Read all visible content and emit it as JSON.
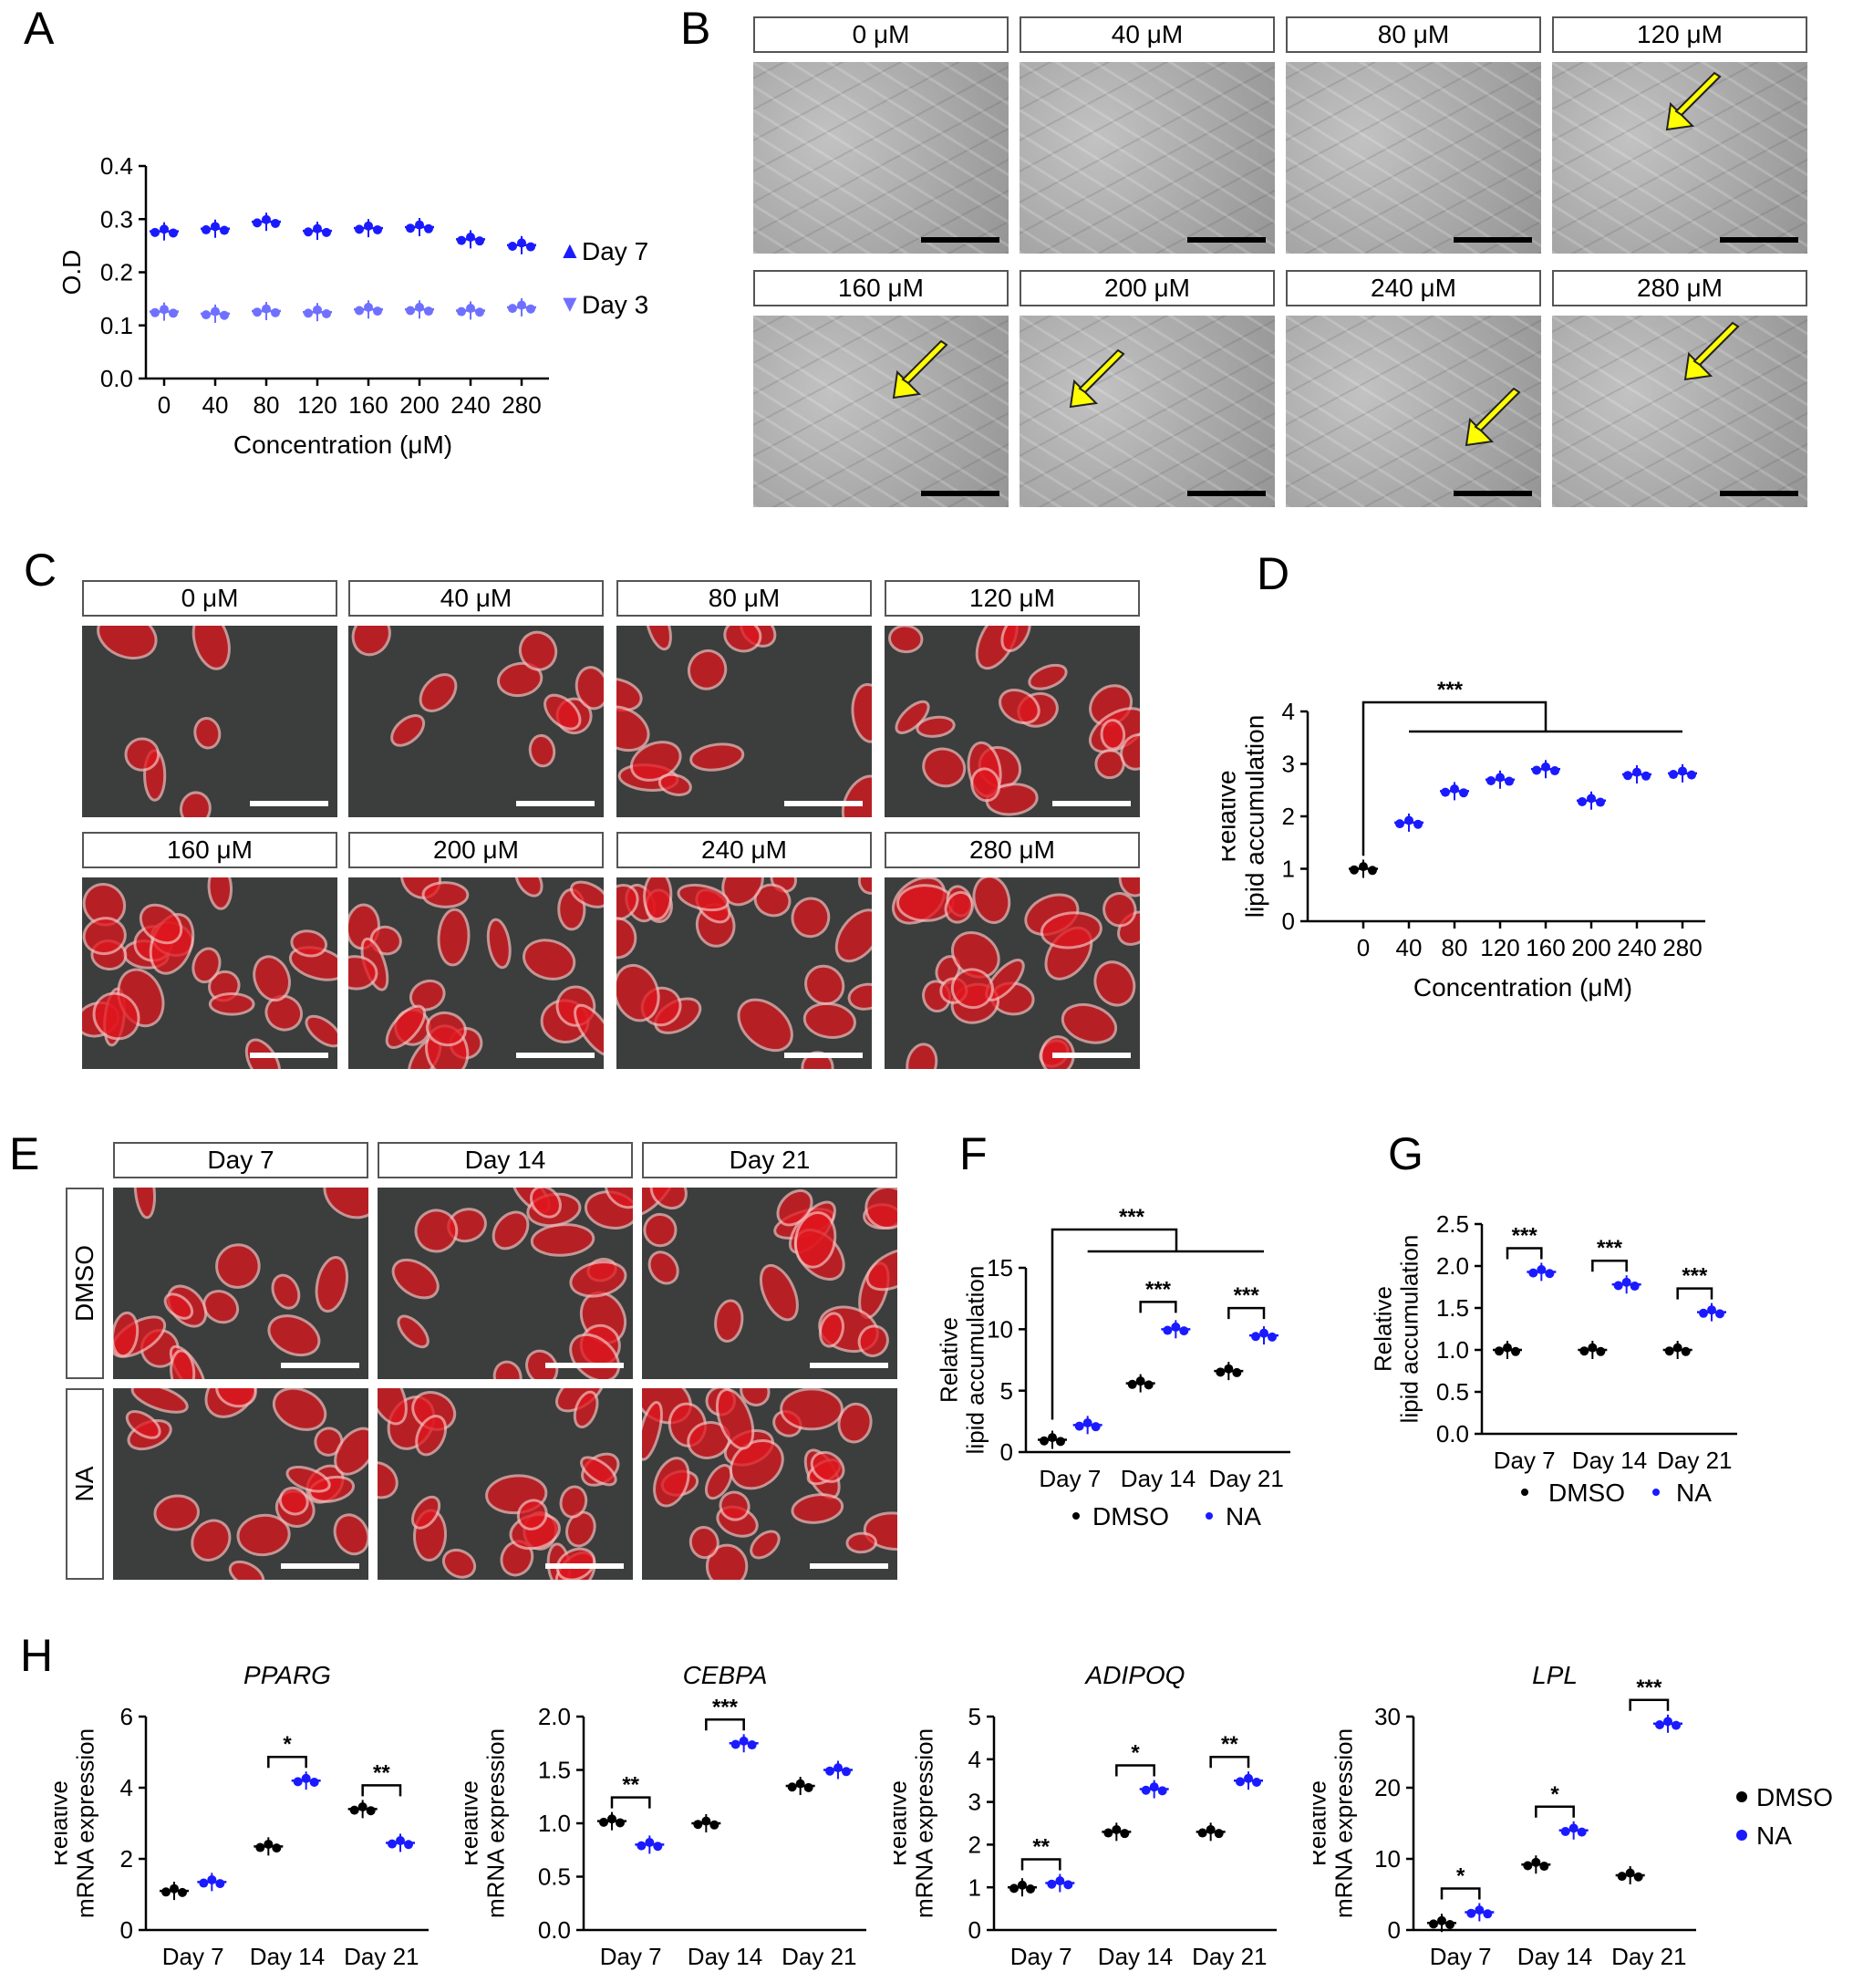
{
  "panels": {
    "A": "A",
    "B": "B",
    "C": "C",
    "D": "D",
    "E": "E",
    "F": "F",
    "G": "G",
    "H": "H"
  },
  "conc_labels": [
    "0 μM",
    "40 μM",
    "80 μM",
    "120 μM",
    "160 μM",
    "200 μM",
    "240 μM",
    "280 μM"
  ],
  "day_labels": [
    "Day 7",
    "Day 14",
    "Day 21"
  ],
  "treat_labels": [
    "DMSO",
    "NA"
  ],
  "colors": {
    "dmso": "#000000",
    "na": "#1a1aff",
    "na_light": "#7070ff",
    "arrow": "#ffff00",
    "stain_red": "#e0161e"
  },
  "chart_data": [
    {
      "panel": "A",
      "type": "scatter",
      "xlabel": "Concentration (μM)",
      "ylabel": "O.D",
      "categories": [
        "0",
        "40",
        "80",
        "120",
        "160",
        "200",
        "240",
        "280"
      ],
      "yticks": [
        "0.0",
        "0.1",
        "0.2",
        "0.3",
        "0.4"
      ],
      "ylim": [
        0,
        0.4
      ],
      "series": [
        {
          "name": "Day 7",
          "values": [
            0.277,
            0.282,
            0.295,
            0.278,
            0.283,
            0.285,
            0.262,
            0.251
          ]
        },
        {
          "name": "Day 3",
          "values": [
            0.126,
            0.122,
            0.127,
            0.125,
            0.13,
            0.13,
            0.128,
            0.134
          ]
        }
      ],
      "legend_position": "right"
    },
    {
      "panel": "D",
      "type": "scatter",
      "xlabel": "Concentration (μM)",
      "ylabel": "Relative lipid accumulation",
      "categories": [
        "0",
        "40",
        "80",
        "120",
        "160",
        "200",
        "240",
        "280"
      ],
      "yticks": [
        "0",
        "1",
        "2",
        "3",
        "4"
      ],
      "ylim": [
        0,
        4
      ],
      "values": [
        1.0,
        1.88,
        2.48,
        2.7,
        2.9,
        2.3,
        2.8,
        2.82
      ],
      "annotations": [
        "***"
      ]
    },
    {
      "panel": "F",
      "type": "scatter",
      "ylabel": "Relative lipid accumulation",
      "categories": [
        "Day 7",
        "Day 14",
        "Day 21"
      ],
      "yticks": [
        "0",
        "5",
        "10",
        "15"
      ],
      "ylim": [
        0,
        15
      ],
      "series": [
        {
          "name": "DMSO",
          "values": [
            1.0,
            5.6,
            6.6
          ]
        },
        {
          "name": "NA",
          "values": [
            2.2,
            10.0,
            9.5
          ]
        }
      ],
      "annotations": [
        "***",
        "***",
        "***"
      ],
      "legend_position": "bottom"
    },
    {
      "panel": "G",
      "type": "scatter",
      "ylabel": "Relative lipid accumulation",
      "categories": [
        "Day 7",
        "Day 14",
        "Day 21"
      ],
      "yticks": [
        "0.0",
        "0.5",
        "1.0",
        "1.5",
        "2.0",
        "2.5"
      ],
      "ylim": [
        0,
        2.5
      ],
      "series": [
        {
          "name": "DMSO",
          "values": [
            1.0,
            1.0,
            1.0
          ]
        },
        {
          "name": "NA",
          "values": [
            1.93,
            1.78,
            1.45
          ]
        }
      ],
      "annotations": [
        "***",
        "***",
        "***"
      ],
      "legend_position": "bottom"
    },
    {
      "panel": "H",
      "type": "scatter",
      "title": "PPARG",
      "ylabel": "Relative mRNA expression",
      "categories": [
        "Day 7",
        "Day 14",
        "Day 21"
      ],
      "yticks": [
        "0",
        "2",
        "4",
        "6"
      ],
      "ylim": [
        0,
        6
      ],
      "series": [
        {
          "name": "DMSO",
          "values": [
            1.1,
            2.35,
            3.4
          ]
        },
        {
          "name": "NA",
          "values": [
            1.35,
            4.2,
            2.45
          ]
        }
      ],
      "annotations": [
        "",
        "*",
        "**"
      ]
    },
    {
      "panel": "H",
      "type": "scatter",
      "title": "CEBPA",
      "ylabel": "Relative mRNA expression",
      "categories": [
        "Day 7",
        "Day 14",
        "Day 21"
      ],
      "yticks": [
        "0.0",
        "0.5",
        "1.0",
        "1.5",
        "2.0"
      ],
      "ylim": [
        0,
        2
      ],
      "series": [
        {
          "name": "DMSO",
          "values": [
            1.02,
            1.0,
            1.35
          ]
        },
        {
          "name": "NA",
          "values": [
            0.8,
            1.75,
            1.5
          ]
        }
      ],
      "annotations": [
        "**",
        "***",
        ""
      ]
    },
    {
      "panel": "H",
      "type": "scatter",
      "title": "ADIPOQ",
      "ylabel": "Relative mRNA expression",
      "categories": [
        "Day 7",
        "Day 14",
        "Day 21"
      ],
      "yticks": [
        "0",
        "1",
        "2",
        "3",
        "4",
        "5"
      ],
      "ylim": [
        0,
        5
      ],
      "series": [
        {
          "name": "DMSO",
          "values": [
            1.0,
            2.3,
            2.3
          ]
        },
        {
          "name": "NA",
          "values": [
            1.1,
            3.3,
            3.5
          ]
        }
      ],
      "annotations": [
        "**",
        "*",
        "**"
      ]
    },
    {
      "panel": "H",
      "type": "scatter",
      "title": "LPL",
      "ylabel": "Relative mRNA expression",
      "categories": [
        "Day 7",
        "Day 14",
        "Day 21"
      ],
      "yticks": [
        "0",
        "10",
        "20",
        "30"
      ],
      "ylim": [
        0,
        30
      ],
      "series": [
        {
          "name": "DMSO",
          "values": [
            1.0,
            9.2,
            7.7
          ]
        },
        {
          "name": "NA",
          "values": [
            2.5,
            14.0,
            29.0
          ]
        }
      ],
      "annotations": [
        "*",
        "*",
        "***"
      ],
      "legend_position": "right"
    }
  ]
}
